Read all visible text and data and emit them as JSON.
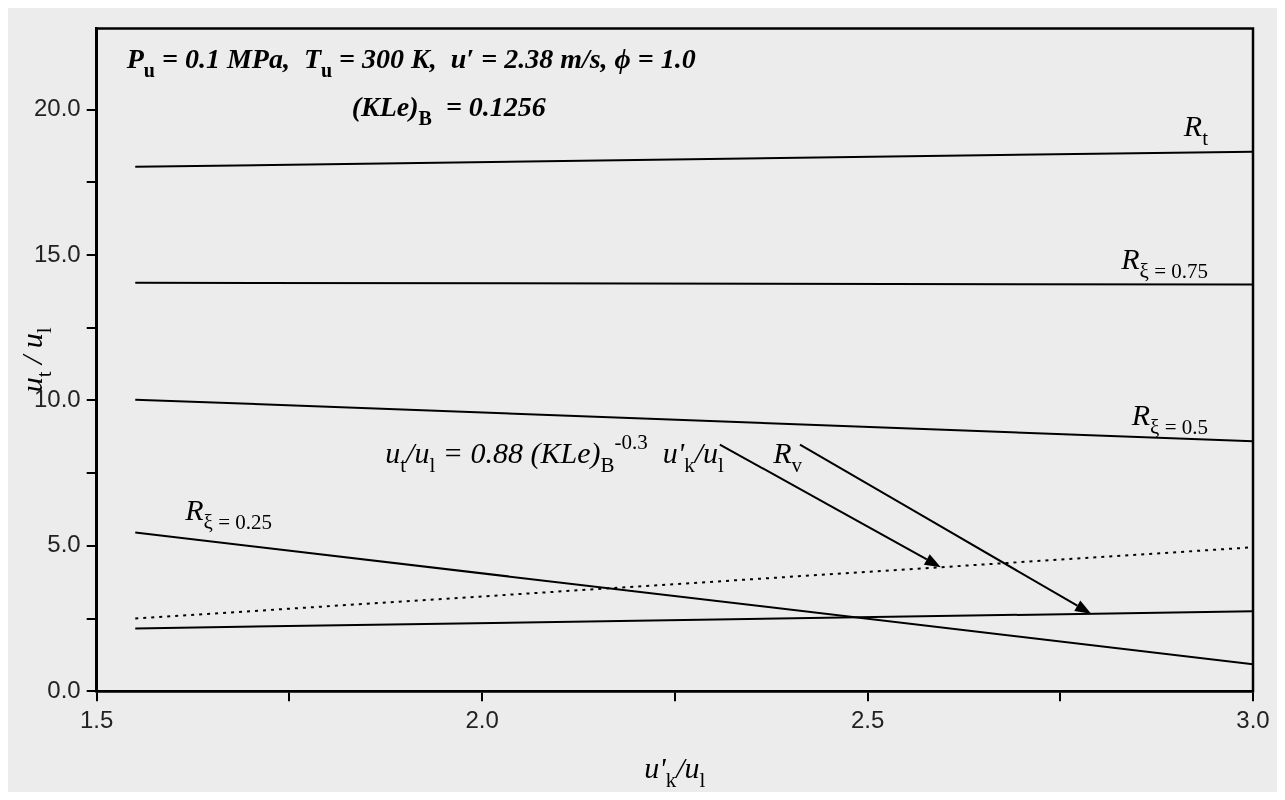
{
  "chart_data": {
    "type": "line",
    "annotations": [
      "P$_{u}$ = 0.1 MPa,  T$_{u}$ = 300 K,  u′ = 2.38 m/s, ϕ = 1.0",
      "(KLe)$_{B}$  = 0.1256"
    ],
    "xlabel": "u'$_{k}$/u$_{l}$",
    "ylabel": "u$_{t}$ / u$_{l}$",
    "x": [
      1.55,
      3.0
    ],
    "series": [
      {
        "name": "R$_{t}$",
        "color": "#000000",
        "values": [
          18.04,
          18.56
        ]
      },
      {
        "name": "R$_{ξ = 0.75}$",
        "color": "#000000",
        "values": [
          14.05,
          13.99
        ]
      },
      {
        "name": "R$_{ξ = 0.5}$",
        "color": "#000000",
        "values": [
          10.03,
          8.6
        ]
      },
      {
        "name": "R$_{ξ = 0.25}$",
        "color": "#000000",
        "values": [
          5.46,
          0.93
        ]
      },
      {
        "name": "u$_{t}$/u$_{l}$ = 0.88 (KLe)$_{B}$$^{-0.3}$  u'$_{k}$/u$_{l}$",
        "color": "#000000",
        "values": [
          2.5,
          4.95
        ],
        "line_style": "dotted"
      },
      {
        "name": "R$_{v}$",
        "color": "#000000",
        "values": [
          2.16,
          2.75
        ]
      }
    ],
    "xlim": [
      1.5,
      3.0
    ],
    "xticks": [
      {
        "value": 1.5,
        "label": "1.5"
      },
      {
        "value": 1.75,
        "label": null
      },
      {
        "value": 2.0,
        "label": "2.0"
      },
      {
        "value": 2.25,
        "label": null
      },
      {
        "value": 2.5,
        "label": "2.5"
      },
      {
        "value": 2.75,
        "label": null
      },
      {
        "value": 3.0,
        "label": "3.0"
      }
    ],
    "ylim": [
      0,
      22.8
    ],
    "yticks": [
      {
        "value": 0,
        "label": "0.0"
      },
      {
        "value": 2.5,
        "label": null
      },
      {
        "value": 5,
        "label": "5.0"
      },
      {
        "value": 7.5,
        "label": null
      },
      {
        "value": 10,
        "label": "10.0"
      },
      {
        "value": 12.5,
        "label": null
      },
      {
        "value": 15,
        "label": "15.0"
      },
      {
        "value": 17.5,
        "label": null
      },
      {
        "value": 20,
        "label": "20.0"
      }
    ],
    "grid": false,
    "legend": false,
    "marker": "none",
    "line_style": "solid"
  }
}
